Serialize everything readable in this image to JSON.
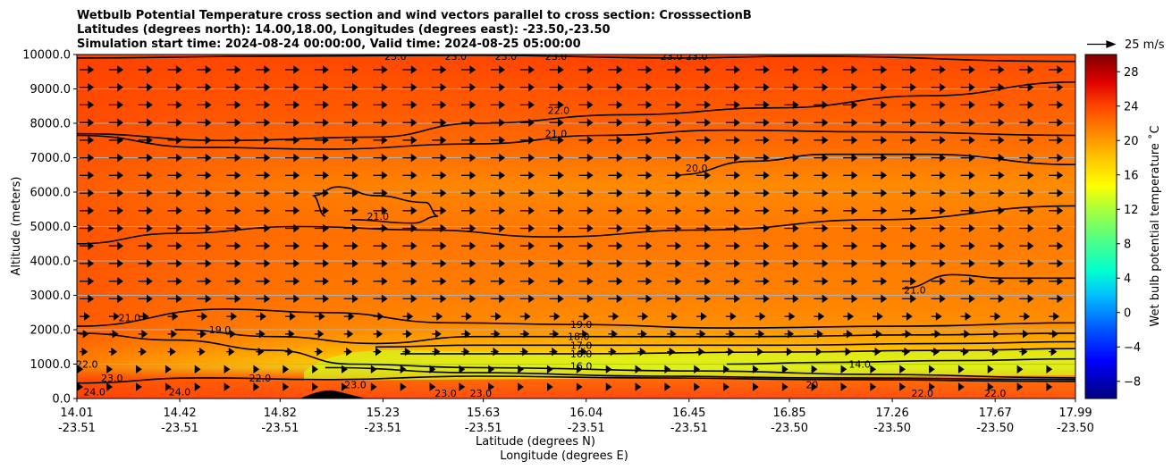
{
  "chart_data": {
    "type": "heatmap",
    "title_lines": [
      "Wetbulb Potential Temperature cross section and wind vectors parallel to cross section: CrosssectionB",
      "Latitudes (degrees north): 14.00,18.00, Longitudes (degrees east): -23.50,-23.50",
      "Simulation start time: 2024-08-24 00:00:00, Valid time: 2024-08-25 05:00:00"
    ],
    "ylabel": "Altitude (meters)",
    "xlabel_1": "Latitude (degrees N)",
    "xlabel_2": "Longitude (degrees E)",
    "ylim": [
      0,
      10000
    ],
    "y_ticks": [
      "0.0",
      "1000.0",
      "2000.0",
      "3000.0",
      "4000.0",
      "5000.0",
      "6000.0",
      "7000.0",
      "8000.0",
      "9000.0",
      "10000.0"
    ],
    "y_tick_values": [
      0,
      1000,
      2000,
      3000,
      4000,
      5000,
      6000,
      7000,
      8000,
      9000,
      10000
    ],
    "x_ticks_lat": [
      "14.01",
      "14.42",
      "14.82",
      "15.23",
      "15.63",
      "16.04",
      "16.45",
      "16.85",
      "17.26",
      "17.67",
      "17.99"
    ],
    "x_ticks_lon": [
      "-23.51",
      "-23.51",
      "-23.51",
      "-23.51",
      "-23.51",
      "-23.51",
      "-23.51",
      "-23.50",
      "-23.50",
      "-23.50",
      "-23.50"
    ],
    "x_tick_values": [
      14.01,
      14.42,
      14.82,
      15.23,
      15.63,
      16.04,
      16.45,
      16.85,
      17.26,
      17.67,
      17.99
    ],
    "xlim": [
      14.01,
      17.99
    ],
    "colorbar": {
      "label": "Wet bulb potential temperature ˚C",
      "ticks": [
        "−8",
        "−4",
        "0",
        "4",
        "8",
        "12",
        "16",
        "20",
        "24",
        "28"
      ],
      "tick_values": [
        -8,
        -4,
        0,
        4,
        8,
        12,
        16,
        20,
        24,
        28
      ],
      "range": [
        -10,
        30
      ]
    },
    "quiver_key": "25 m/s",
    "contours": [
      {
        "level": "22.0",
        "height_m": 8300
      },
      {
        "level": "21.0",
        "height_m": 7400
      },
      {
        "level": "20.0",
        "height_m": 6400
      },
      {
        "level": "21.0",
        "height_m": 2800
      },
      {
        "level": "19.0",
        "height_m": 1950
      },
      {
        "level": "18.0",
        "height_m": 1750
      },
      {
        "level": "17.0",
        "height_m": 1500
      },
      {
        "level": "16.0",
        "height_m": 1300
      },
      {
        "level": "23.0",
        "height_m": 9950
      },
      {
        "level": "22.0",
        "height_m": 200
      }
    ],
    "contour_labels": [
      {
        "text": "23.0",
        "x": 15.28,
        "y": 9950
      },
      {
        "text": "23.0",
        "x": 15.52,
        "y": 9950
      },
      {
        "text": "23.0",
        "x": 15.72,
        "y": 9950
      },
      {
        "text": "23.0",
        "x": 15.92,
        "y": 9950
      },
      {
        "text": "23.0",
        "x": 16.38,
        "y": 9950
      },
      {
        "text": "23.0",
        "x": 16.48,
        "y": 9950
      },
      {
        "text": "22.0",
        "x": 15.93,
        "y": 8380
      },
      {
        "text": "21.0",
        "x": 15.92,
        "y": 7700
      },
      {
        "text": "20.0",
        "x": 16.48,
        "y": 6700
      },
      {
        "text": "21.0",
        "x": 15.21,
        "y": 5300
      },
      {
        "text": "21.0",
        "x": 17.35,
        "y": 3150
      },
      {
        "text": "21.0",
        "x": 14.22,
        "y": 2350
      },
      {
        "text": "19.0",
        "x": 14.58,
        "y": 2000
      },
      {
        "text": "19.0",
        "x": 16.02,
        "y": 2150
      },
      {
        "text": "18.0",
        "x": 16.01,
        "y": 1800
      },
      {
        "text": "17.0",
        "x": 16.02,
        "y": 1550
      },
      {
        "text": "16.0",
        "x": 16.02,
        "y": 1300
      },
      {
        "text": "16.0",
        "x": 16.02,
        "y": 950
      },
      {
        "text": "22.0",
        "x": 14.05,
        "y": 1000
      },
      {
        "text": "23.0",
        "x": 14.15,
        "y": 600
      },
      {
        "text": "24.0",
        "x": 14.08,
        "y": 200
      },
      {
        "text": "24.0",
        "x": 14.42,
        "y": 200
      },
      {
        "text": "22.0",
        "x": 14.74,
        "y": 600
      },
      {
        "text": "23.0",
        "x": 15.12,
        "y": 400
      },
      {
        "text": "23.0",
        "x": 15.48,
        "y": 150
      },
      {
        "text": "23.0",
        "x": 15.62,
        "y": 150
      },
      {
        "text": "14.0",
        "x": 17.13,
        "y": 1000
      },
      {
        "text": "20",
        "x": 16.94,
        "y": 400
      },
      {
        "text": "22.0",
        "x": 17.38,
        "y": 150
      },
      {
        "text": "22.0",
        "x": 17.67,
        "y": 150
      }
    ]
  }
}
